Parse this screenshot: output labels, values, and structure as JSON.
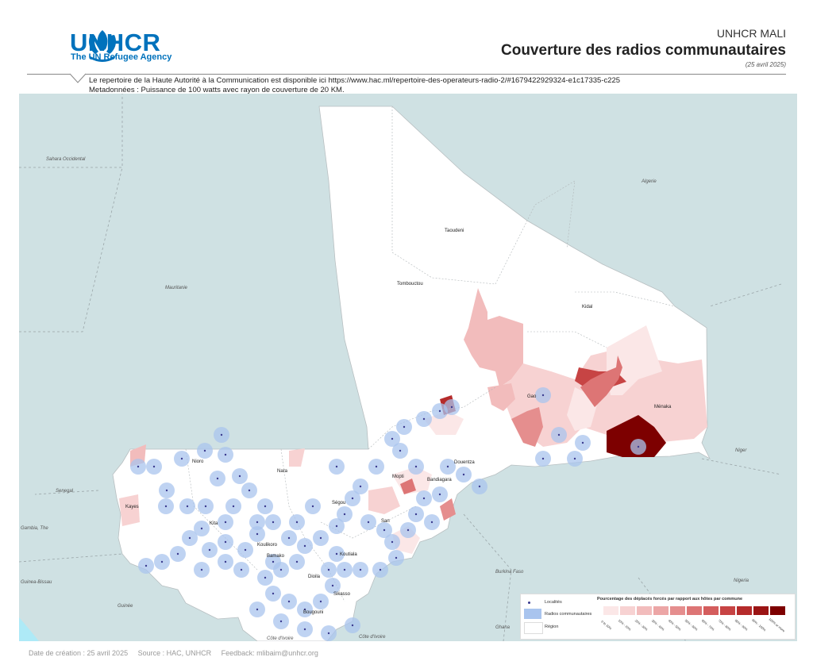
{
  "header": {
    "org_name": "UNHCR",
    "org_subtitle": "The UN Refugee Agency",
    "country": "UNHCR MALI",
    "title": "Couverture des radios communautaires",
    "date": "(25 avril 2025)"
  },
  "notes": [
    "Le repertoire de la Haute Autorité à la Communication est disponible ici https://www.hac.ml/repertoire-des-operateurs-radio-2/#1679422929324-e1c17335-c225",
    "Metadonnées : Puissance de 100 watts avec rayon de couverture de 20 KM."
  ],
  "map": {
    "colors": {
      "sea": "#cfe1e3",
      "region": "#ffffff",
      "coverage": "#a9c4ee",
      "locality": "#3b3b8f",
      "border": "#9aa5a8"
    },
    "country_labels": [
      {
        "name": "Sahara Occidental",
        "pos": "nw"
      },
      {
        "name": "Algerie",
        "pos": "ne"
      },
      {
        "name": "Mauritanie",
        "pos": "w"
      },
      {
        "name": "Senegal",
        "pos": "w"
      },
      {
        "name": "Gambia, The",
        "pos": "w"
      },
      {
        "name": "Guinea-Bissau",
        "pos": "sw"
      },
      {
        "name": "Guinée",
        "pos": "sw"
      },
      {
        "name": "Côte d'Ivoire",
        "pos": "s"
      },
      {
        "name": "Côte d'Ivoire",
        "pos": "s"
      },
      {
        "name": "Burkina Faso",
        "pos": "s"
      },
      {
        "name": "Ghana",
        "pos": "s"
      },
      {
        "name": "Niger",
        "pos": "e"
      },
      {
        "name": "Nigeria",
        "pos": "se"
      }
    ],
    "region_labels": [
      "Taoudeni",
      "Tombouctou",
      "Kidal",
      "Gao",
      "Ménaka",
      "Douentza",
      "Bandiagara",
      "Mopti",
      "Nara",
      "Nioro",
      "Kayes",
      "Kita",
      "Ségou",
      "Koulikoro",
      "San",
      "Bamako",
      "Koutiala",
      "Dioila",
      "Sikasso",
      "Bougouni"
    ],
    "coverage_color_scale": [
      "#fbe7e7",
      "#f7d2d2",
      "#f2bcbc",
      "#eca6a6",
      "#e58e8e",
      "#dd7575",
      "#d45d5d",
      "#c74444",
      "#b52b2b",
      "#9b1414",
      "#7d0000"
    ]
  },
  "legend": {
    "title": "Pourcentage des déplacés forcés par rapport aux hôtes par commune",
    "items": [
      "Localités",
      "Radios communautaires",
      "Région"
    ],
    "ranges": [
      "0 to 10%",
      "10% - 20%",
      "20% - 30%",
      "30% - 40%",
      "40% - 50%",
      "50% - 60%",
      "60% - 70%",
      "70% - 80%",
      "80% - 90%",
      "90% - 100%",
      "100% or more"
    ]
  },
  "footer": {
    "creation": "Date de création : 25 avril 2025",
    "source": "Source : HAC, UNHCR",
    "feedback": "Feedback: mlibaim@unhcr.org"
  }
}
